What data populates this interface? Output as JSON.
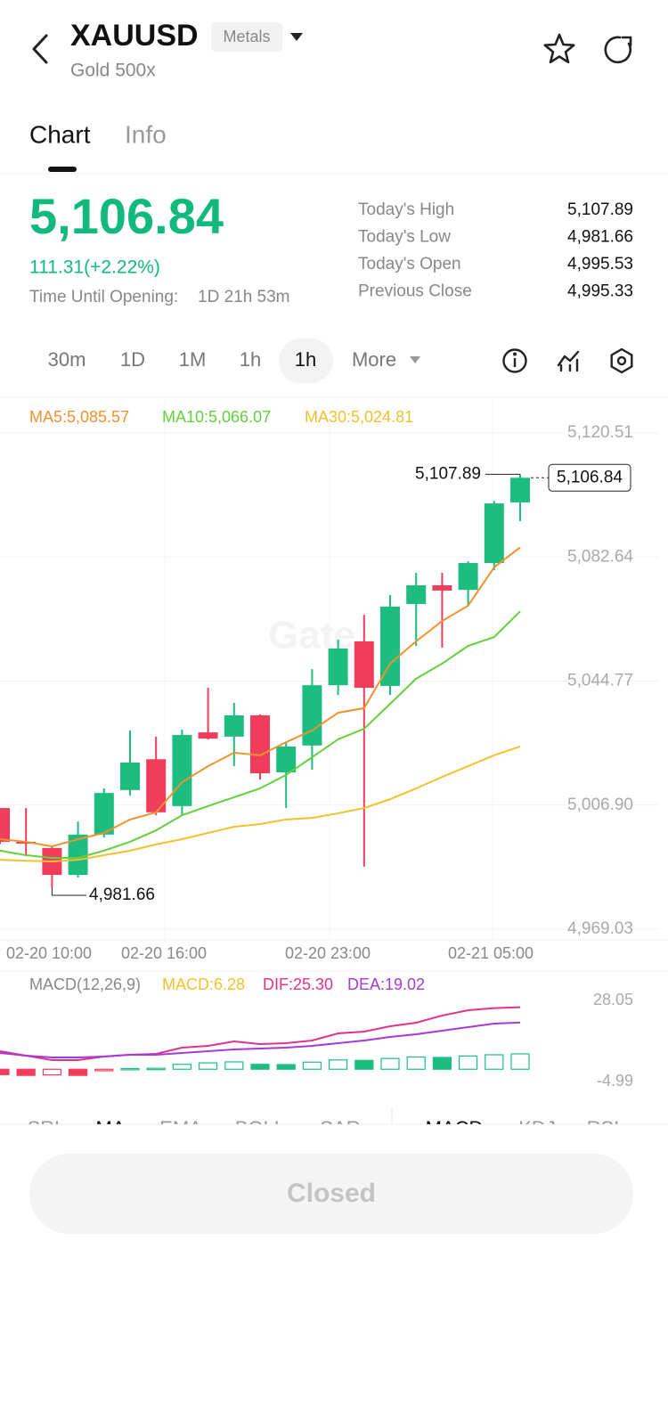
{
  "header": {
    "symbol": "XAUUSD",
    "badge": "Metals",
    "subtitle": "Gold 500x"
  },
  "tabs": [
    "Chart",
    "Info"
  ],
  "quote": {
    "price": "5,106.84",
    "change": "111.31(+2.22%)",
    "countdown_label": "Time Until Opening:",
    "countdown": "1D 21h 53m"
  },
  "stats": [
    {
      "label": "Today's High",
      "value": "5,107.89"
    },
    {
      "label": "Today's Low",
      "value": "4,981.66"
    },
    {
      "label": "Today's Open",
      "value": "4,995.53"
    },
    {
      "label": "Previous Close",
      "value": "4,995.33"
    }
  ],
  "intervals": {
    "items": [
      "30m",
      "1D",
      "1M",
      "1h",
      "1h",
      "More"
    ],
    "selected": 4
  },
  "chart": {
    "type": "candlestick",
    "watermark": "Gate",
    "up_color": "#1dbd80",
    "down_color": "#f23c5c",
    "ma_legend": [
      "MA5:5,085.57",
      "MA10:5,066.07",
      "MA30:5,024.81"
    ],
    "ma": [
      {
        "color": "#f0922e",
        "values": [
          4996.5,
          4995.7,
          4994.3,
          4996.5,
          4998.4,
          5002.5,
          5004.7,
          5013.9,
          5018.8,
          5022.9,
          5022.1,
          5026.1,
          5029.7,
          5035.1,
          5036.5,
          5050.1,
          5056.9,
          5063.1,
          5067.8,
          5079.5,
          5085.57
        ]
      },
      {
        "color": "#62d13c",
        "values": [
          4993.0,
          4991.6,
          4990.8,
          4990.8,
          4993.0,
          4995.7,
          4999.2,
          5003.8,
          5006.6,
          5009.3,
          5012.0,
          5016.1,
          5021.5,
          5027.0,
          5030.2,
          5037.8,
          5045.5,
          5050.1,
          5055.5,
          5058.2,
          5066.07
        ]
      },
      {
        "color": "#f2c12e",
        "values": [
          4990.2,
          4989.9,
          4989.7,
          4990.2,
          4991.6,
          4993.0,
          4994.9,
          4996.5,
          4998.4,
          5000.3,
          5001.1,
          5002.5,
          5003.0,
          5004.4,
          5006.0,
          5008.7,
          5012.0,
          5015.5,
          5018.8,
          5022.1,
          5024.81
        ]
      }
    ],
    "candles": {
      "open": [
        5006.0,
        4995.7,
        4993.8,
        4985.6,
        4997.9,
        5011.5,
        5020.9,
        5006.6,
        5029.1,
        5027.8,
        5034.3,
        5016.9,
        5025.1,
        5043.5,
        5056.9,
        5043.3,
        5068.3,
        5074.0,
        5072.6,
        5080.8,
        5099.3
      ],
      "high": [
        5006.0,
        5006.0,
        4994.5,
        5001.9,
        5012.0,
        5029.7,
        5027.8,
        5029.9,
        5042.7,
        5038.1,
        5034.6,
        5026.1,
        5048.4,
        5057.4,
        5065.0,
        5071.0,
        5077.8,
        5077.8,
        5081.3,
        5099.8,
        5107.89
      ],
      "low": [
        4995.0,
        4991.6,
        4981.66,
        4984.8,
        4997.0,
        5009.8,
        5003.8,
        5003.8,
        5026.9,
        5018.8,
        5014.7,
        5006.0,
        5017.7,
        5040.5,
        4988.1,
        5040.5,
        5055.5,
        5055.0,
        5067.8,
        5078.6,
        5093.6
      ],
      "close": [
        4995.7,
        4995.2,
        4985.6,
        4997.9,
        5010.6,
        5019.9,
        5004.7,
        5028.3,
        5027.2,
        5034.3,
        5016.6,
        5024.8,
        5043.5,
        5054.7,
        5042.7,
        5067.5,
        5074.0,
        5072.4,
        5080.8,
        5099.0,
        5106.84
      ]
    },
    "ylim": [
      4969.03,
      5120.51
    ],
    "yticks": [
      {
        "value": 5120.51,
        "label": "5,120.51"
      },
      {
        "value": 5082.64,
        "label": "5,082.64"
      },
      {
        "value": 5044.77,
        "label": "5,044.77"
      },
      {
        "value": 5006.9,
        "label": "5,006.90"
      },
      {
        "value": 4969.03,
        "label": "4,969.03"
      }
    ],
    "time_labels": [
      "02-20 10:00",
      "02-20 16:00",
      "02-20 23:00",
      "02-21 05:00"
    ],
    "high_marker": {
      "value": 5107.89,
      "label": "5,107.89"
    },
    "low_marker": {
      "value": 4981.66,
      "label": "4,981.66"
    },
    "last_price": {
      "value": 5106.84,
      "label": "5,106.84"
    }
  },
  "macd": {
    "legend": [
      {
        "text": "MACD(12,26,9)",
        "color": "#888888"
      },
      {
        "text": "MACD:6.28",
        "color": "#f2c12e"
      },
      {
        "text": "DIF:25.30",
        "color": "#e0338a"
      },
      {
        "text": "DEA:19.02",
        "color": "#a63ad4"
      }
    ],
    "histogram": [
      -2.2,
      -2.5,
      -2.3,
      -2.5,
      -0.6,
      0.3,
      0.4,
      2.0,
      2.6,
      3.0,
      2.0,
      1.9,
      2.9,
      3.8,
      3.6,
      4.4,
      5.0,
      4.8,
      5.4,
      5.9,
      6.28
    ],
    "dif": {
      "color": "#e0338a",
      "values": [
        7.36,
        5.54,
        3.72,
        3.72,
        5.18,
        5.9,
        6.27,
        8.81,
        9.53,
        11.35,
        10.26,
        10.62,
        11.71,
        14.62,
        15.34,
        17.52,
        18.98,
        21.88,
        24.06,
        24.9,
        25.3
      ]
    },
    "dea": {
      "color": "#a63ad4",
      "values": [
        6.63,
        5.54,
        4.81,
        4.81,
        5.18,
        5.9,
        5.9,
        6.63,
        7.36,
        8.08,
        8.44,
        8.81,
        9.53,
        10.62,
        11.71,
        13.17,
        14.25,
        15.71,
        17.16,
        18.61,
        19.02
      ]
    },
    "ylim": [
      -4.99,
      28.05
    ],
    "yticks": [
      28.05,
      -4.99
    ]
  },
  "indicators": {
    "items": [
      "SRL",
      "MA",
      "EMA",
      "BOLL",
      "SAR",
      "MACD",
      "KDJ",
      "RSI"
    ],
    "selected": [
      1,
      5
    ]
  },
  "button": "Closed"
}
